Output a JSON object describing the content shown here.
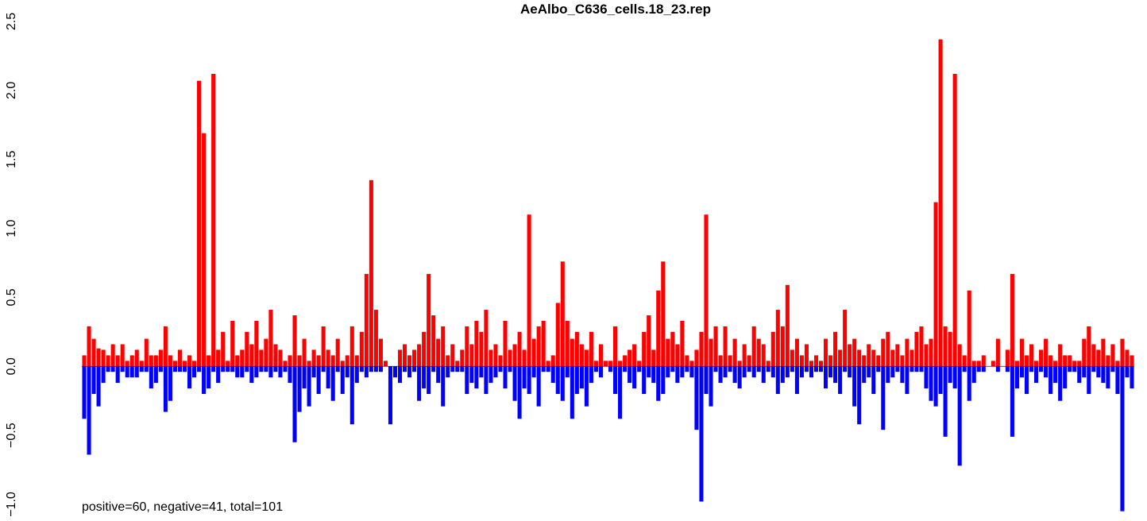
{
  "chart_data": {
    "type": "bar",
    "title": "AeAlbo_C636_cells.18_23.rep",
    "annotation": "positive=60, negative=41, total=101",
    "ylim": [
      -1.0,
      2.5
    ],
    "yticks": [
      {
        "value": -1.0,
        "label": "−1.0"
      },
      {
        "value": -0.5,
        "label": "−0.5"
      },
      {
        "value": 0,
        "label": "0.0"
      },
      {
        "value": 0.5,
        "label": "0.5"
      },
      {
        "value": 1.0,
        "label": "1.0"
      },
      {
        "value": 1.5,
        "label": "1.5"
      },
      {
        "value": 2.0,
        "label": "2.0"
      },
      {
        "value": 2.5,
        "label": "2.5"
      }
    ],
    "series": [
      {
        "color": "#ff0000",
        "values": [
          0.08,
          0.29,
          0.2,
          0.13,
          0.12,
          0.08,
          0.16,
          0.08,
          0.16,
          0.04,
          0.08,
          0.12,
          0.04,
          0.2,
          0.08,
          0.08,
          0.12,
          0.29,
          0.08,
          0.04,
          0.12,
          0.04,
          0.08,
          0.04,
          2.07,
          1.69,
          0.08,
          2.12,
          0.12,
          0.25,
          0.04,
          0.33,
          0.08,
          0.12,
          0.25,
          0.16,
          0.33,
          0.12,
          0.2,
          0.41,
          0.16,
          0.12,
          0.04,
          0.08,
          0.37,
          0.08,
          0.2,
          0.04,
          0.12,
          0.08,
          0.29,
          0.12,
          0.08,
          0.2,
          0.04,
          0.08,
          0.29,
          0.08,
          0.25,
          0.67,
          1.35,
          0.41,
          0.2,
          0.04,
          0,
          0,
          0.12,
          0.16,
          0.08,
          0.12,
          0.16,
          0.25,
          0.67,
          0.37,
          0.2,
          0.29,
          0.08,
          0.16,
          0.04,
          0.12,
          0.29,
          0.16,
          0.33,
          0.25,
          0.41,
          0.12,
          0.16,
          0.08,
          0.33,
          0.12,
          0.16,
          0.25,
          0.12,
          1.1,
          0.2,
          0.29,
          0.33,
          0.04,
          0.08,
          0.46,
          0.76,
          0.33,
          0.2,
          0.25,
          0.16,
          0.12,
          0.25,
          0.04,
          0.16,
          0.04,
          0.04,
          0.29,
          0.04,
          0.08,
          0.12,
          0.16,
          0.04,
          0.25,
          0.37,
          0.12,
          0.55,
          0.76,
          0.2,
          0.25,
          0.16,
          0.33,
          0.08,
          0.04,
          0.12,
          0.25,
          1.1,
          0.2,
          0.29,
          0.08,
          0.29,
          0.08,
          0.2,
          0.04,
          0.16,
          0.08,
          0.29,
          0.2,
          0.16,
          0.04,
          0.25,
          0.41,
          0.29,
          0.59,
          0.12,
          0.2,
          0.08,
          0.16,
          0.04,
          0.08,
          0.04,
          0.2,
          0.08,
          0.25,
          0.12,
          0.41,
          0.16,
          0.2,
          0.12,
          0.08,
          0.16,
          0.12,
          0.08,
          0.2,
          0.25,
          0.12,
          0.16,
          0.08,
          0.2,
          0.12,
          0.25,
          0.29,
          0.16,
          0.2,
          1.19,
          2.37,
          0.29,
          0.25,
          2.12,
          0.16,
          0.08,
          0.55,
          0.04,
          0.04,
          0.08,
          0,
          0.04,
          0.2,
          0,
          0.12,
          0.67,
          0.04,
          0.2,
          0.08,
          0.16,
          0.04,
          0.12,
          0.2,
          0.08,
          0.04,
          0.16,
          0.08,
          0.08,
          0.04,
          0.04,
          0.2,
          0.29,
          0.16,
          0.12,
          0.2,
          0.08,
          0.16,
          0.04,
          0.2,
          0.12,
          0.08
        ]
      },
      {
        "color": "#0000ff",
        "values": [
          -0.38,
          -0.64,
          -0.2,
          -0.29,
          -0.12,
          -0.04,
          -0.04,
          -0.12,
          -0.04,
          -0.08,
          -0.08,
          -0.08,
          -0.04,
          -0.04,
          -0.16,
          -0.12,
          -0.04,
          -0.33,
          -0.25,
          -0.04,
          -0.04,
          -0.04,
          -0.16,
          -0.08,
          -0.04,
          -0.2,
          -0.16,
          -0.04,
          -0.12,
          -0.04,
          -0.04,
          -0.04,
          -0.08,
          -0.08,
          -0.04,
          -0.12,
          -0.08,
          -0.04,
          -0.04,
          -0.08,
          -0.04,
          -0.08,
          -0.04,
          -0.12,
          -0.55,
          -0.33,
          -0.16,
          -0.29,
          -0.08,
          -0.2,
          -0.04,
          -0.16,
          -0.25,
          -0.04,
          -0.2,
          -0.08,
          -0.42,
          -0.12,
          -0.04,
          -0.08,
          -0.04,
          -0.04,
          -0.04,
          0,
          -0.42,
          -0.08,
          -0.12,
          -0.04,
          -0.08,
          -0.04,
          -0.25,
          -0.16,
          -0.2,
          -0.04,
          -0.12,
          -0.29,
          -0.08,
          -0.04,
          -0.04,
          -0.04,
          -0.2,
          -0.12,
          -0.16,
          -0.08,
          -0.2,
          -0.12,
          -0.08,
          -0.04,
          -0.16,
          -0.04,
          -0.25,
          -0.38,
          -0.16,
          -0.2,
          -0.08,
          -0.29,
          -0.04,
          -0.04,
          -0.12,
          -0.2,
          -0.25,
          -0.08,
          -0.38,
          -0.2,
          -0.16,
          -0.29,
          -0.12,
          -0.04,
          -0.08,
          0,
          -0.04,
          -0.2,
          -0.38,
          -0.04,
          -0.12,
          -0.16,
          -0.04,
          -0.2,
          -0.08,
          -0.12,
          -0.25,
          -0.2,
          -0.08,
          -0.04,
          -0.12,
          -0.08,
          -0.04,
          -0.08,
          -0.46,
          -0.98,
          -0.2,
          -0.29,
          -0.04,
          -0.12,
          -0.08,
          -0.04,
          -0.12,
          -0.16,
          -0.08,
          -0.04,
          -0.08,
          -0.04,
          -0.12,
          -0.04,
          -0.08,
          -0.2,
          -0.12,
          -0.08,
          -0.04,
          -0.2,
          -0.08,
          -0.04,
          -0.08,
          -0.04,
          -0.04,
          -0.16,
          -0.08,
          -0.12,
          -0.2,
          -0.04,
          -0.08,
          -0.29,
          -0.42,
          -0.12,
          -0.08,
          -0.2,
          -0.04,
          -0.46,
          -0.12,
          -0.08,
          -0.04,
          -0.12,
          -0.2,
          -0.04,
          -0.04,
          -0.04,
          -0.16,
          -0.25,
          -0.29,
          -0.2,
          -0.51,
          -0.12,
          -0.16,
          -0.72,
          -0.04,
          -0.25,
          -0.12,
          -0.04,
          -0.04,
          0,
          0,
          -0.04,
          0,
          -0.04,
          -0.51,
          -0.16,
          -0.08,
          -0.2,
          -0.04,
          -0.12,
          -0.04,
          -0.08,
          -0.2,
          -0.12,
          -0.25,
          -0.16,
          -0.04,
          -0.04,
          -0.12,
          -0.08,
          -0.2,
          -0.04,
          -0.08,
          -0.12,
          -0.16,
          -0.04,
          -0.2,
          -1.05,
          -0.08,
          -0.16
        ]
      }
    ]
  }
}
